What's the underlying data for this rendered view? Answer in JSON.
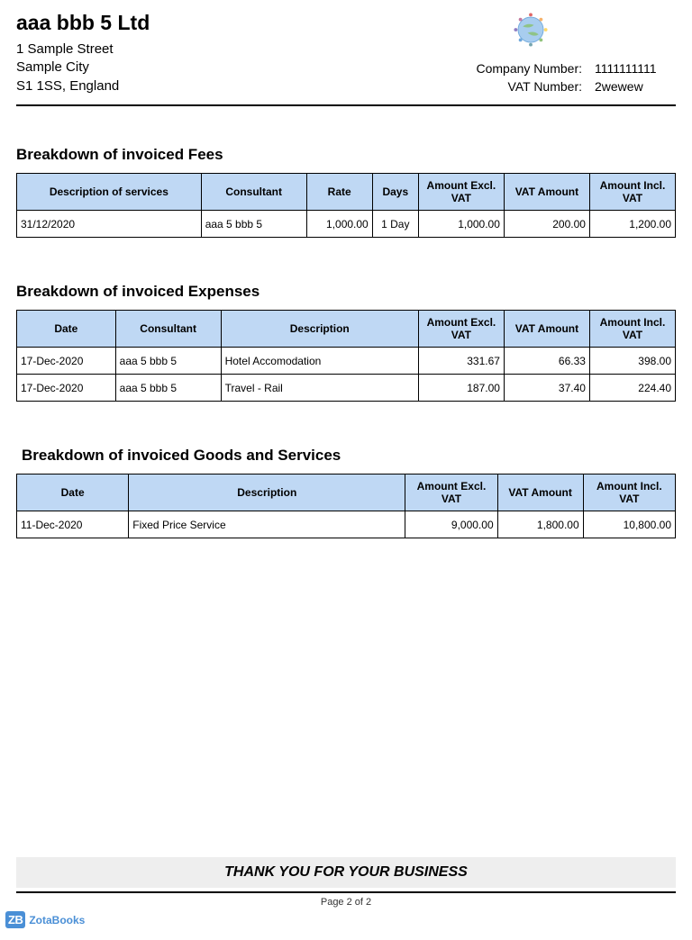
{
  "colors": {
    "header_bg": "#bfd8f4",
    "border": "#000000",
    "footer_band_bg": "#eeeeee",
    "brand_blue": "#4a8fd6"
  },
  "company": {
    "name": "aaa bbb 5 Ltd",
    "address_line1": "1 Sample Street",
    "address_line2": "Sample City",
    "address_line3": "S1 1SS, England"
  },
  "registration": {
    "company_number_label": "Company Number:",
    "company_number": "1111111111",
    "vat_number_label": "VAT Number:",
    "vat_number": "2wewew"
  },
  "fees": {
    "title": "Breakdown of invoiced Fees",
    "columns": [
      "Description of services",
      "Consultant",
      "Rate",
      "Days",
      "Amount Excl. VAT",
      "VAT Amount",
      "Amount Incl. VAT"
    ],
    "col_widths": [
      "28%",
      "16%",
      "10%",
      "7%",
      "13%",
      "13%",
      "13%"
    ],
    "rows": [
      {
        "desc": "31/12/2020",
        "consultant": "aaa 5 bbb 5",
        "rate": "1,000.00",
        "days": "1 Day",
        "excl": "1,000.00",
        "vat": "200.00",
        "incl": "1,200.00"
      }
    ]
  },
  "expenses": {
    "title": "Breakdown of invoiced Expenses",
    "columns": [
      "Date",
      "Consultant",
      "Description",
      "Amount Excl. VAT",
      "VAT Amount",
      "Amount Incl. VAT"
    ],
    "col_widths": [
      "15%",
      "16%",
      "30%",
      "13%",
      "13%",
      "13%"
    ],
    "rows": [
      {
        "date": "17-Dec-2020",
        "consultant": "aaa 5 bbb 5",
        "desc": "Hotel Accomodation",
        "excl": "331.67",
        "vat": "66.33",
        "incl": "398.00"
      },
      {
        "date": "17-Dec-2020",
        "consultant": "aaa 5 bbb 5",
        "desc": "Travel - Rail",
        "excl": "187.00",
        "vat": "37.40",
        "incl": "224.40"
      }
    ]
  },
  "goods": {
    "title": "Breakdown of invoiced Goods and Services",
    "columns": [
      "Date",
      "Description",
      "Amount Excl. VAT",
      "VAT Amount",
      "Amount Incl. VAT"
    ],
    "col_widths": [
      "17%",
      "42%",
      "14%",
      "13%",
      "14%"
    ],
    "rows": [
      {
        "date": "11-Dec-2020",
        "desc": "Fixed Price Service",
        "excl": "9,000.00",
        "vat": "1,800.00",
        "incl": "10,800.00"
      }
    ]
  },
  "footer": {
    "thank_you": "THANK YOU FOR YOUR BUSINESS",
    "page": "Page 2  of 2",
    "brand_box": "ZB",
    "brand_text": "ZotaBooks"
  }
}
